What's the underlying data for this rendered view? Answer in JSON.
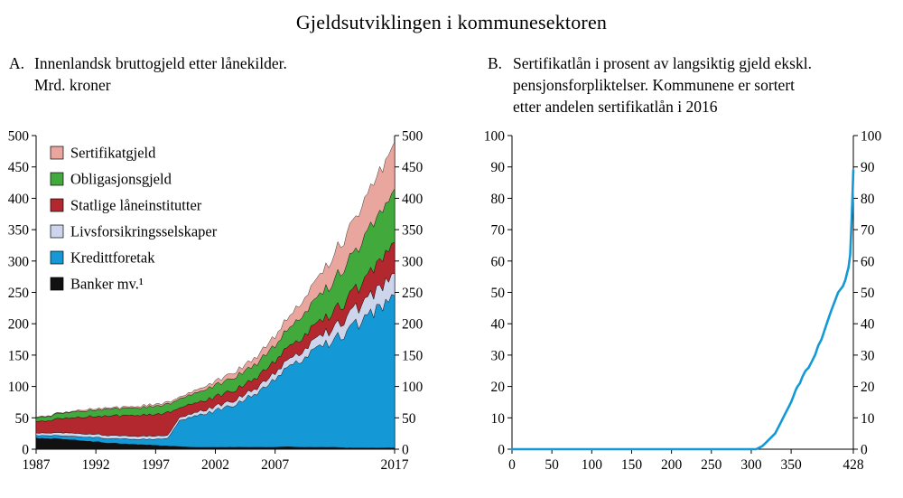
{
  "title": "Gjeldsutviklingen i kommunesektoren",
  "panels": {
    "a": {
      "prefix": "A.",
      "title": "Innenlandsk bruttogjeld etter lånekilder.\nMrd. kroner"
    },
    "b": {
      "prefix": "B.",
      "title": "Sertifikatlån i prosent av langsiktig gjeld ekskl.\npensjonsforpliktelser. Kommunene er sortert\netter andelen sertifikatlån i 2016"
    }
  },
  "chart_data": [
    {
      "type": "area",
      "stacked": true,
      "title": "Innenlandsk bruttogjeld etter lånekilder. Mrd. kroner",
      "ylabel": "Mrd. kroner",
      "ylim": [
        0,
        500
      ],
      "ytick_step": 50,
      "axis_sides": "both",
      "grid": false,
      "legend_position": "top-left-inside",
      "x": [
        1987,
        1988,
        1989,
        1990,
        1991,
        1992,
        1993,
        1994,
        1995,
        1996,
        1997,
        1998,
        1999,
        2000,
        2001,
        2002,
        2003,
        2004,
        2005,
        2006,
        2007,
        2008,
        2009,
        2010,
        2011,
        2012,
        2013,
        2014,
        2015,
        2016,
        2017
      ],
      "xticks": [
        1987,
        1992,
        1997,
        2002,
        2007,
        2017
      ],
      "series": [
        {
          "name": "Banker mv.¹",
          "color": "#111111",
          "values": [
            18,
            17,
            16,
            15,
            13,
            12,
            10,
            9,
            8,
            7,
            6,
            5,
            4,
            3,
            3,
            3,
            3,
            3,
            3,
            3,
            3,
            4,
            3,
            3,
            3,
            3,
            2,
            2,
            2,
            2,
            2
          ]
        },
        {
          "name": "Kredittforetak",
          "color": "#1599d6",
          "values": [
            4,
            5,
            5,
            6,
            6,
            7,
            7,
            8,
            8,
            9,
            10,
            12,
            40,
            48,
            52,
            58,
            64,
            72,
            82,
            95,
            108,
            122,
            135,
            148,
            160,
            172,
            185,
            198,
            212,
            228,
            243
          ]
        },
        {
          "name": "Livsforsikringsselskaper",
          "color": "#ccd5ec",
          "values": [
            4,
            4,
            5,
            5,
            5,
            5,
            5,
            5,
            5,
            5,
            5,
            5,
            5,
            5,
            6,
            7,
            7,
            8,
            8,
            9,
            10,
            11,
            13,
            15,
            17,
            20,
            23,
            26,
            29,
            32,
            35
          ]
        },
        {
          "name": "Statlige låneinstitutter",
          "color": "#b2282e",
          "values": [
            18,
            20,
            22,
            24,
            27,
            29,
            31,
            32,
            33,
            34,
            35,
            36,
            15,
            16,
            15,
            15,
            16,
            16,
            17,
            18,
            19,
            20,
            22,
            23,
            24,
            26,
            28,
            32,
            38,
            44,
            50
          ]
        },
        {
          "name": "Obligasjonsgjeld",
          "color": "#42a93c",
          "values": [
            6,
            7,
            8,
            9,
            10,
            10,
            11,
            11,
            12,
            12,
            13,
            14,
            14,
            15,
            17,
            19,
            20,
            21,
            22,
            23,
            25,
            28,
            33,
            38,
            43,
            49,
            56,
            63,
            70,
            78,
            85
          ]
        },
        {
          "name": "Sertifikatgjeld",
          "color": "#e9a69e",
          "values": [
            1,
            1,
            1,
            1,
            2,
            2,
            2,
            2,
            2,
            3,
            3,
            3,
            3,
            4,
            5,
            6,
            8,
            9,
            10,
            12,
            15,
            18,
            22,
            27,
            32,
            40,
            48,
            55,
            62,
            68,
            75
          ]
        }
      ],
      "legend_top_down": [
        "Sertifikatgjeld",
        "Obligasjonsgjeld",
        "Statlige låneinstitutter",
        "Livsforsikringsselskaper",
        "Kredittforetak",
        "Banker mv.¹"
      ],
      "footnote_marker": "1"
    },
    {
      "type": "line",
      "title": "Sertifikatlån i prosent av langsiktig gjeld ekskl. pensjonsforpliktelser. Kommunene er sortert etter andelen sertifikatlån i 2016",
      "color": "#1599d6",
      "xlim": [
        0,
        428
      ],
      "xticks": [
        0,
        50,
        100,
        150,
        200,
        250,
        300,
        350,
        428
      ],
      "ylim": [
        0,
        100
      ],
      "ytick_step": 10,
      "axis_sides": "both",
      "grid": false,
      "points": [
        [
          0,
          0
        ],
        [
          50,
          0
        ],
        [
          100,
          0
        ],
        [
          150,
          0
        ],
        [
          200,
          0
        ],
        [
          250,
          0
        ],
        [
          280,
          0
        ],
        [
          300,
          0
        ],
        [
          306,
          0
        ],
        [
          310,
          0.5
        ],
        [
          314,
          1
        ],
        [
          318,
          2
        ],
        [
          322,
          3
        ],
        [
          326,
          4
        ],
        [
          330,
          5
        ],
        [
          334,
          7
        ],
        [
          338,
          9
        ],
        [
          342,
          11
        ],
        [
          346,
          13
        ],
        [
          350,
          15
        ],
        [
          353,
          17
        ],
        [
          356,
          19
        ],
        [
          358,
          20
        ],
        [
          361,
          21
        ],
        [
          364,
          23
        ],
        [
          368,
          25
        ],
        [
          372,
          26
        ],
        [
          376,
          28
        ],
        [
          380,
          30
        ],
        [
          384,
          33
        ],
        [
          388,
          35
        ],
        [
          392,
          38
        ],
        [
          396,
          41
        ],
        [
          400,
          44
        ],
        [
          403,
          46
        ],
        [
          406,
          48
        ],
        [
          409,
          50
        ],
        [
          412,
          51
        ],
        [
          415,
          52
        ],
        [
          418,
          54
        ],
        [
          420,
          56
        ],
        [
          422,
          58
        ],
        [
          424,
          62
        ],
        [
          425,
          68
        ],
        [
          426,
          74
        ],
        [
          427,
          81
        ],
        [
          428,
          89
        ]
      ]
    }
  ]
}
